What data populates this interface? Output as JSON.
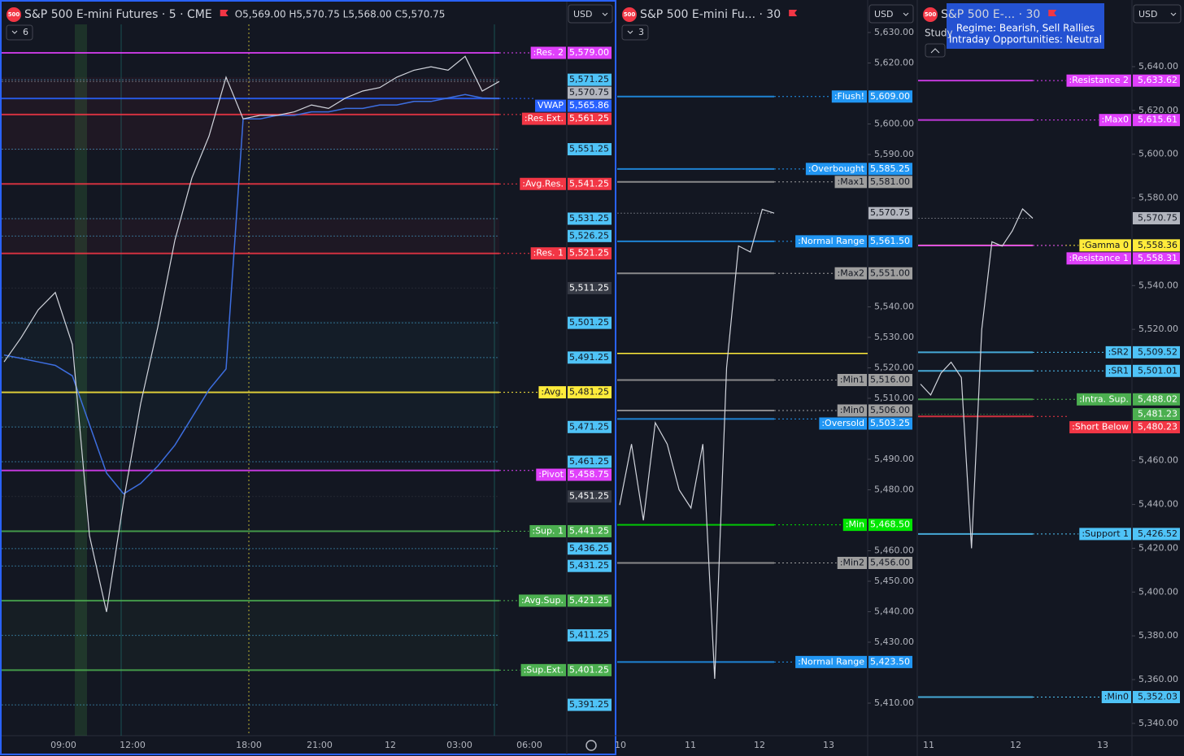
{
  "panels": [
    {
      "logo": "500",
      "title": "S&P 500 E-mini Futures · 5 · CME",
      "ohlc": "O5,569.00 H5,570.75 L5,568.00 C5,570.75",
      "currency": "USD",
      "indicator_count": "6",
      "ticks": [],
      "time_labels": [
        "09:00",
        "12:00",
        "18:00",
        "21:00",
        "12",
        "03:00",
        "06:00"
      ],
      "price_color": "#d1d4dc",
      "closes": [
        5490,
        5497,
        5505,
        5510,
        5495,
        5440,
        5418,
        5450,
        5478,
        5500,
        5525,
        5543,
        5555,
        5572,
        5560,
        5561,
        5561,
        5562,
        5564,
        5563,
        5566,
        5568,
        5569,
        5572,
        5574,
        5575,
        5574,
        5578,
        5568,
        5570.75
      ],
      "vwap_color": "#3d6ee0",
      "vwap": [
        5492,
        5491,
        5490,
        5489,
        5486,
        5472,
        5458,
        5452,
        5455,
        5460,
        5466,
        5474,
        5482,
        5488,
        5560,
        5560,
        5561,
        5561,
        5562,
        5562,
        5563,
        5563,
        5564,
        5564,
        5565,
        5565,
        5566,
        5567,
        5566,
        5565.86
      ],
      "levels": [
        {
          "name": ":Res. 2",
          "label": "5,579.00",
          "value": 5579,
          "color": "#e040fb"
        },
        {
          "label": "5,571.25",
          "value": 5571.25,
          "color": "#4fc3f7"
        },
        {
          "label": "5,570.75",
          "value": 5570.75,
          "color": "#b2b5be"
        },
        {
          "name": "VWAP",
          "label": "5,565.86",
          "value": 5565.86,
          "color": "#2962ff"
        },
        {
          "name": ":Res.Ext.",
          "label": "5,561.25",
          "value": 5561.25,
          "color": "#f23645"
        },
        {
          "label": "5,551.25",
          "value": 5551.25,
          "color": "#4fc3f7"
        },
        {
          "name": ":Avg.Res.",
          "label": "5,541.25",
          "value": 5541.25,
          "color": "#f23645"
        },
        {
          "label": "5,531.25",
          "value": 5531.25,
          "color": "#4fc3f7"
        },
        {
          "label": "5,526.25",
          "value": 5526.25,
          "color": "#4fc3f7"
        },
        {
          "name": ":Res. 1",
          "label": "5,521.25",
          "value": 5521.25,
          "color": "#f23645"
        },
        {
          "label": "5,511.25",
          "value": 5511.25,
          "color": "#363a45"
        },
        {
          "label": "5,501.25",
          "value": 5501.25,
          "color": "#4fc3f7"
        },
        {
          "label": "5,491.25",
          "value": 5491.25,
          "color": "#4fc3f7"
        },
        {
          "name": ":Avg.",
          "label": "5,481.25",
          "value": 5481.25,
          "color": "#ffeb3b"
        },
        {
          "label": "5,471.25",
          "value": 5471.25,
          "color": "#4fc3f7"
        },
        {
          "label": "5,461.25",
          "value": 5461.25,
          "color": "#4fc3f7"
        },
        {
          "name": ":Pivot",
          "label": "5,458.75",
          "value": 5458.75,
          "color": "#e040fb"
        },
        {
          "label": "5,451.25",
          "value": 5451.25,
          "color": "#363a45"
        },
        {
          "name": ":Sup. 1",
          "label": "5,441.25",
          "value": 5441.25,
          "color": "#4caf50"
        },
        {
          "label": "5,436.25",
          "value": 5436.25,
          "color": "#4fc3f7"
        },
        {
          "label": "5,431.25",
          "value": 5431.25,
          "color": "#4fc3f7"
        },
        {
          "name": ":Avg.Sup.",
          "label": "5,421.25",
          "value": 5421.25,
          "color": "#4caf50"
        },
        {
          "label": "5,411.25",
          "value": 5411.25,
          "color": "#4fc3f7"
        },
        {
          "name": ":Sup.Ext.",
          "label": "5,401.25",
          "value": 5401.25,
          "color": "#4caf50"
        },
        {
          "label": "5,391.25",
          "value": 5391.25,
          "color": "#4fc3f7"
        }
      ]
    },
    {
      "logo": "500",
      "title": "S&P 500 E-mini Fu... · 30",
      "currency": "USD",
      "indicator_count": "3",
      "ticks": [
        {
          "value": 5630,
          "label": "5,630.00"
        },
        {
          "value": 5620,
          "label": "5,620.00"
        },
        {
          "value": 5600,
          "label": "5,600.00"
        },
        {
          "value": 5590,
          "label": "5,590.00"
        },
        {
          "value": 5540,
          "label": "5,540.00"
        },
        {
          "value": 5530,
          "label": "5,530.00"
        },
        {
          "value": 5520,
          "label": "5,520.00"
        },
        {
          "value": 5510,
          "label": "5,510.00"
        },
        {
          "value": 5490,
          "label": "5,490.00"
        },
        {
          "value": 5480,
          "label": "5,480.00"
        },
        {
          "value": 5460,
          "label": "5,460.00"
        },
        {
          "value": 5450,
          "label": "5,450.00"
        },
        {
          "value": 5440,
          "label": "5,440.00"
        },
        {
          "value": 5430,
          "label": "5,430.00"
        },
        {
          "value": 5410,
          "label": "5,410.00"
        }
      ],
      "time_labels": [
        "10",
        "11",
        "12",
        "13"
      ],
      "price_color": "#d1d4dc",
      "closes": [
        5475,
        5495,
        5470,
        5502,
        5495,
        5480,
        5474,
        5495,
        5418,
        5520,
        5560,
        5558,
        5572,
        5570.75
      ],
      "levels": [
        {
          "name": ":Flush!",
          "label": "5,609.00",
          "value": 5609,
          "color": "#2196f3"
        },
        {
          "name": ":Overbought",
          "label": "5,585.25",
          "value": 5585.25,
          "color": "#2196f3"
        },
        {
          "name": ":Max1",
          "label": "5,581.00",
          "value": 5581,
          "color": "#9e9e9e"
        },
        {
          "label": "5,570.75",
          "value": 5570.75,
          "color": "#b2b5be"
        },
        {
          "name": ":Normal Range",
          "label": "5,561.50",
          "value": 5561.5,
          "color": "#2196f3"
        },
        {
          "name": ":Max2",
          "label": "5,551.00",
          "value": 5551,
          "color": "#9e9e9e"
        },
        {
          "value": 5524.75,
          "color": "#ffeb3b"
        },
        {
          "name": ":Min1",
          "label": "5,516.00",
          "value": 5516,
          "color": "#9e9e9e"
        },
        {
          "name": ":Min0",
          "label": "5,506.00",
          "value": 5506,
          "color": "#9e9e9e"
        },
        {
          "name": ":Oversold",
          "label": "5,503.25",
          "value": 5503.25,
          "color": "#2196f3"
        },
        {
          "name": ":Min",
          "label": "5,468.50",
          "value": 5468.5,
          "color": "#00e600"
        },
        {
          "name": ":Min2",
          "label": "5,456.00",
          "value": 5456,
          "color": "#9e9e9e"
        },
        {
          "name": ":Normal Range",
          "label": "5,423.50",
          "value": 5423.5,
          "color": "#2196f3"
        }
      ]
    },
    {
      "logo": "500",
      "title": "S&P 500 E-... · 30",
      "currency": "USD",
      "study": "Study",
      "tooltip": [
        "Regime: Bearish, Sell Rallies",
        "Intraday Opportunities: Neutral"
      ],
      "ticks": [
        {
          "value": 5640,
          "label": "5,640.00"
        },
        {
          "value": 5620,
          "label": "5,620.00"
        },
        {
          "value": 5600,
          "label": "5,600.00"
        },
        {
          "value": 5580,
          "label": "5,580.00"
        },
        {
          "value": 5540,
          "label": "5,540.00"
        },
        {
          "value": 5520,
          "label": "5,520.00"
        },
        {
          "value": 5460,
          "label": "5,460.00"
        },
        {
          "value": 5440,
          "label": "5,440.00"
        },
        {
          "value": 5420,
          "label": "5,420.00"
        },
        {
          "value": 5400,
          "label": "5,400.00"
        },
        {
          "value": 5380,
          "label": "5,380.00"
        },
        {
          "value": 5360,
          "label": "5,360.00"
        },
        {
          "value": 5340,
          "label": "5,340.00"
        }
      ],
      "time_labels": [
        "11",
        "12",
        "13"
      ],
      "price_color": "#d1d4dc",
      "closes": [
        5495,
        5490,
        5500,
        5505,
        5498,
        5420,
        5520,
        5560,
        5558,
        5565,
        5575,
        5570.75
      ],
      "levels": [
        {
          "name": ":Resistance 2",
          "label": "5,633.62",
          "value": 5633.62,
          "color": "#e040fb"
        },
        {
          "name": ":Max0",
          "label": "5,615.61",
          "value": 5615.61,
          "color": "#e040fb"
        },
        {
          "label": "5,570.75",
          "value": 5570.75,
          "color": "#b2b5be"
        },
        {
          "name": ":Gamma 0",
          "label": "5,558.36",
          "value": 5558.36,
          "color": "#ffeb3b"
        },
        {
          "name": ":Resistance 1",
          "label": "5,558.31",
          "value": 5558.31,
          "color": "#e040fb"
        },
        {
          "name": ":SR2",
          "label": "5,509.52",
          "value": 5509.52,
          "color": "#4fc3f7"
        },
        {
          "name": ":SR1",
          "label": "5,501.01",
          "value": 5501.01,
          "color": "#4fc3f7"
        },
        {
          "name": ":Intra. Sup.",
          "label": "5,488.02",
          "value": 5488.02,
          "color": "#4caf50"
        },
        {
          "label": "5,481.23",
          "value": 5481.23,
          "color": "#4caf50"
        },
        {
          "name": ":Short Below",
          "label": "5,480.23",
          "value": 5480.23,
          "color": "#f23645"
        },
        {
          "name": ":Support 1",
          "label": "5,426.52",
          "value": 5426.52,
          "color": "#4fc3f7"
        },
        {
          "name": ":Min0",
          "label": "5,352.03",
          "value": 5352.03,
          "color": "#4fc3f7"
        }
      ]
    }
  ]
}
